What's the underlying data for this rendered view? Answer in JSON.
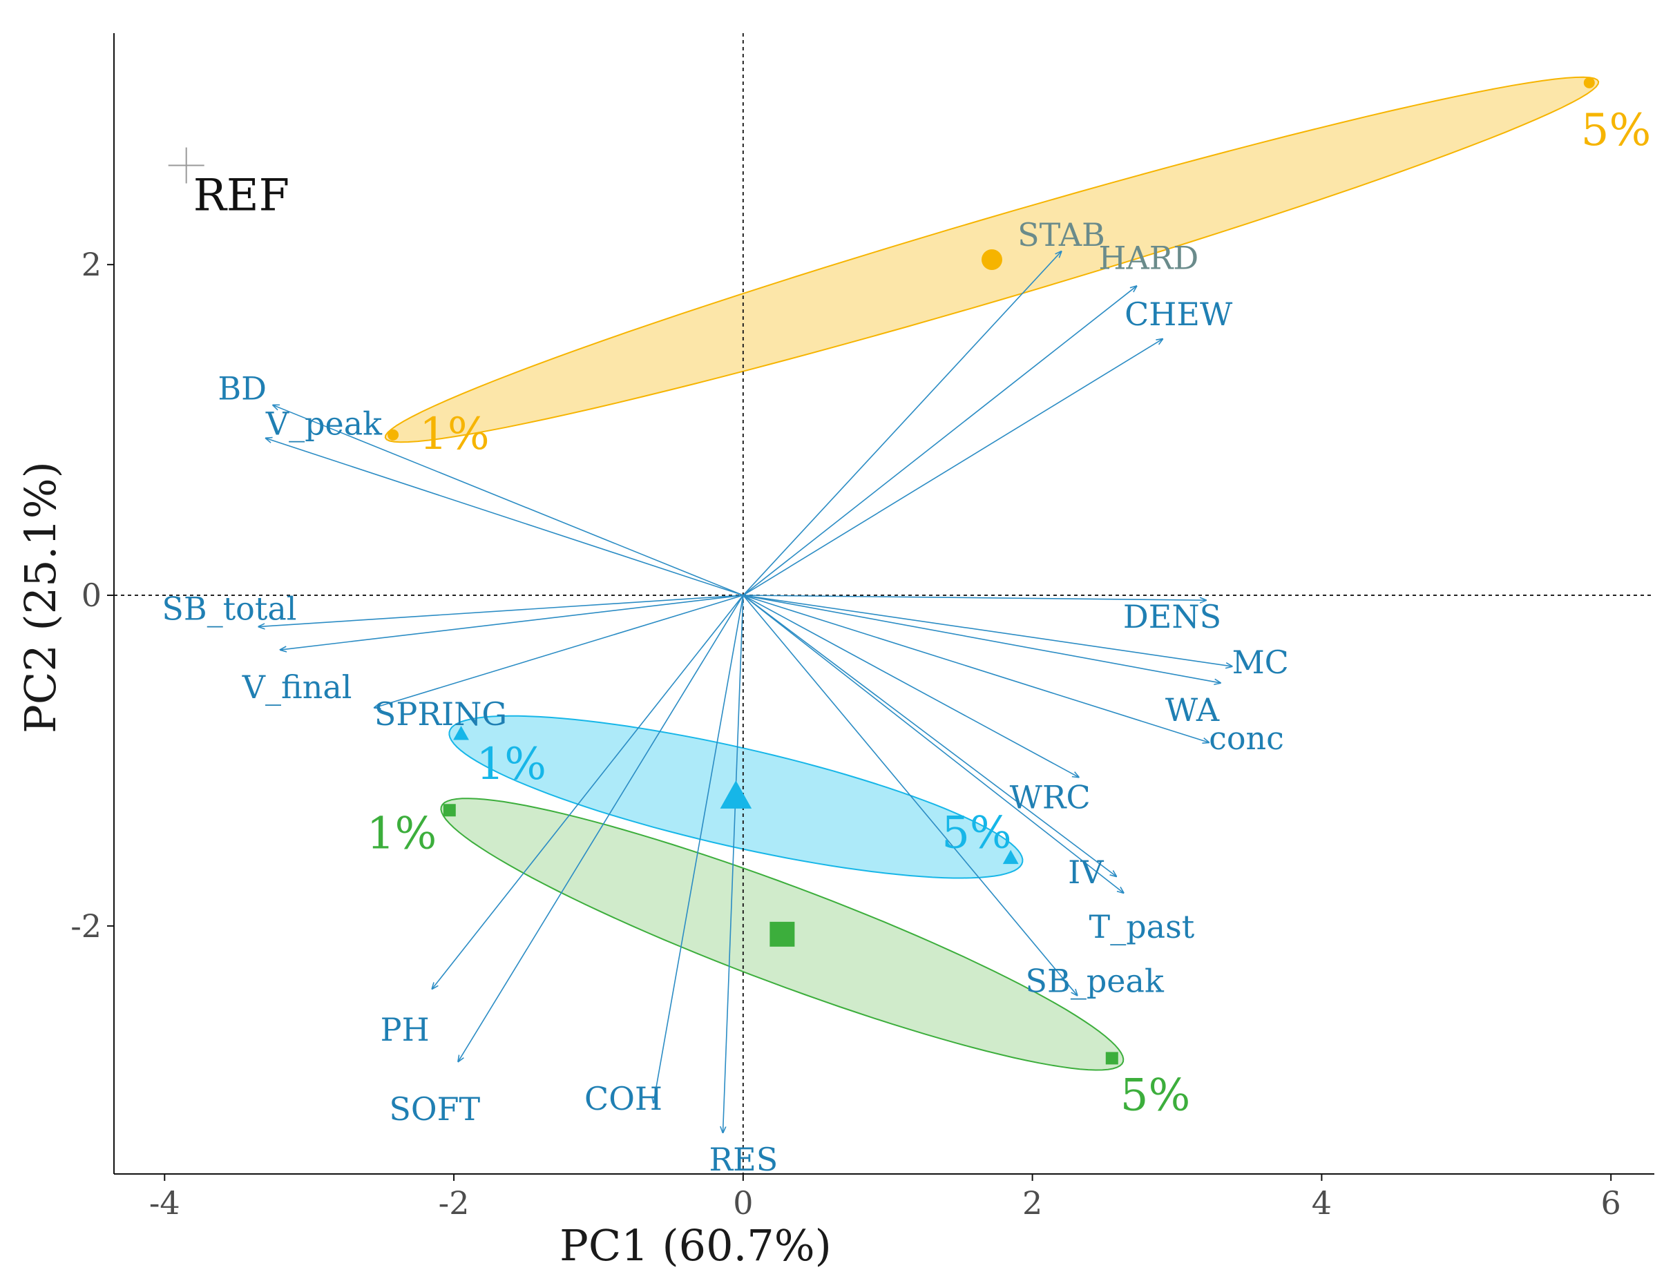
{
  "chart_data": {
    "type": "scatter",
    "subtype": "pca-biplot",
    "xlabel": "PC1 (60.7%)",
    "ylabel": "PC2 (25.1%)",
    "xlim": [
      -4.35,
      6.3
    ],
    "ylim": [
      -3.5,
      3.4
    ],
    "xticks": [
      -4,
      -2,
      0,
      2,
      4,
      6
    ],
    "yticks": [
      -2,
      0,
      2
    ],
    "xtick_labels": [
      "-4",
      "-2",
      "0",
      "2",
      "4",
      "6"
    ],
    "ytick_labels": [
      "-2",
      "0",
      "2"
    ],
    "grid": false,
    "reference_lines": [
      {
        "axis": "x",
        "value": 0,
        "style": "dashed"
      },
      {
        "axis": "y",
        "value": 0,
        "style": "dashed"
      }
    ],
    "reference_point": {
      "label": "REF",
      "x": -3.85,
      "y": 2.6,
      "color": "#999999"
    },
    "groups": [
      {
        "name": "orange",
        "color": "#f6b400",
        "fill": "#fbe29a",
        "marker": "circle",
        "centroid": {
          "x": 1.72,
          "y": 2.03
        },
        "points": [
          {
            "label": "1%",
            "x": -2.42,
            "y": 0.97
          },
          {
            "label": "5%",
            "x": 5.85,
            "y": 3.1
          }
        ],
        "ellipse": {
          "cx": 1.72,
          "cy": 2.03,
          "rx": 4.33,
          "ry": 0.25,
          "angle_deg": 14.4
        }
      },
      {
        "name": "blue",
        "color": "#16b6e8",
        "fill": "#9fe6f8",
        "marker": "triangle",
        "centroid": {
          "x": -0.05,
          "y": -1.22
        },
        "points": [
          {
            "label": "1%",
            "x": -1.95,
            "y": -0.84
          },
          {
            "label": "5%",
            "x": 1.85,
            "y": -1.59
          }
        ],
        "ellipse": {
          "cx": -0.05,
          "cy": -1.22,
          "rx": 2.02,
          "ry": 0.3,
          "angle_deg": -11.2
        }
      },
      {
        "name": "green",
        "color": "#3cae3c",
        "fill": "#c8e7c2",
        "marker": "square",
        "centroid": {
          "x": 0.27,
          "y": -2.05
        },
        "points": [
          {
            "label": "1%",
            "x": -2.03,
            "y": -1.3
          },
          {
            "label": "5%",
            "x": 2.55,
            "y": -2.8
          }
        ],
        "ellipse": {
          "cx": 0.27,
          "cy": -2.05,
          "rx": 2.48,
          "ry": 0.3,
          "angle_deg": -18.1
        }
      }
    ],
    "loadings": [
      {
        "name": "STAB",
        "x": 2.2,
        "y": 2.08,
        "label_color": "#6a8b8b"
      },
      {
        "name": "HARD",
        "x": 2.72,
        "y": 1.87,
        "label_color": "#6a8b8b"
      },
      {
        "name": "CHEW",
        "x": 2.9,
        "y": 1.55,
        "label_color": "#1f7fb3"
      },
      {
        "name": "BD",
        "x": -3.25,
        "y": 1.15,
        "label_color": "#1f7fb3"
      },
      {
        "name": "V_peak",
        "x": -3.3,
        "y": 0.95,
        "label_color": "#1f7fb3"
      },
      {
        "name": "SB_total",
        "x": -3.35,
        "y": -0.19,
        "label_color": "#1f7fb3"
      },
      {
        "name": "V_final",
        "x": -3.2,
        "y": -0.33,
        "label_color": "#1f7fb3"
      },
      {
        "name": "SPRING",
        "x": -2.55,
        "y": -0.68,
        "label_color": "#1f7fb3"
      },
      {
        "name": "DENS",
        "x": 3.2,
        "y": -0.03,
        "label_color": "#1f7fb3"
      },
      {
        "name": "MC",
        "x": 3.38,
        "y": -0.43,
        "label_color": "#1f7fb3"
      },
      {
        "name": "WA",
        "x": 3.3,
        "y": -0.53,
        "label_color": "#1f7fb3"
      },
      {
        "name": "conc",
        "x": 3.22,
        "y": -0.89,
        "label_color": "#1f7fb3"
      },
      {
        "name": "WRC",
        "x": 2.32,
        "y": -1.1,
        "label_color": "#1f7fb3"
      },
      {
        "name": "IV",
        "x": 2.58,
        "y": -1.7,
        "label_color": "#1f7fb3"
      },
      {
        "name": "T_past",
        "x": 2.63,
        "y": -1.8,
        "label_color": "#1f7fb3"
      },
      {
        "name": "SB_peak",
        "x": 2.31,
        "y": -2.42,
        "label_color": "#1f7fb3"
      },
      {
        "name": "PH",
        "x": -2.15,
        "y": -2.38,
        "label_color": "#1f7fb3"
      },
      {
        "name": "SOFT",
        "x": -1.97,
        "y": -2.82,
        "label_color": "#1f7fb3"
      },
      {
        "name": "COH",
        "x": -0.62,
        "y": -3.07,
        "label_color": "#1f7fb3"
      },
      {
        "name": "RES",
        "x": -0.14,
        "y": -3.25,
        "label_color": "#1f7fb3"
      }
    ],
    "arrow_color": "#2b8cc4"
  }
}
